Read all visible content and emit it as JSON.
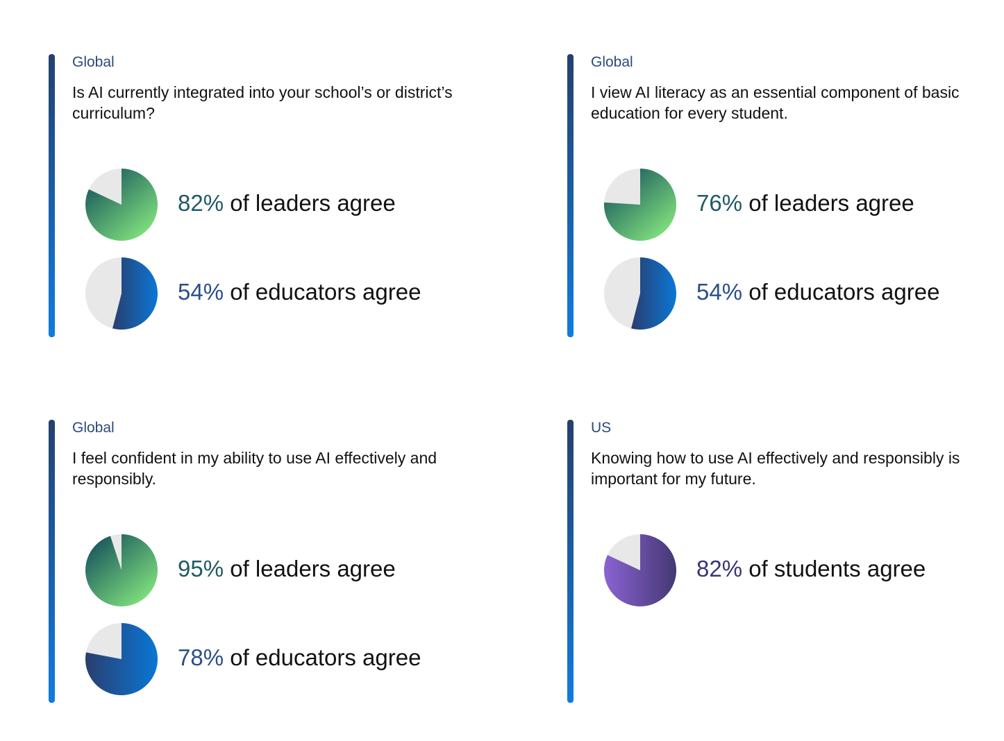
{
  "colors": {
    "pie_remainder": "#e8e8e8",
    "leaders_gradient": [
      "#1c5a5e",
      "#7fe07d"
    ],
    "educators_gradient": [
      "#293e6e",
      "#0a77d6"
    ],
    "students_gradient": [
      "#8a63d2",
      "#453873"
    ],
    "accent_bar": [
      "#25406f",
      "#0f7ce0"
    ]
  },
  "chart_data": [
    {
      "type": "pie",
      "region": "Global",
      "question": "Is AI currently integrated into your school’s or district’s curriculum?",
      "stats": [
        {
          "group": "leaders",
          "value": 82,
          "pct_label": "82%",
          "label": "of leaders agree"
        },
        {
          "group": "educators",
          "value": 54,
          "pct_label": "54%",
          "label": "of educators agree"
        }
      ]
    },
    {
      "type": "pie",
      "region": "Global",
      "question": "I view AI literacy as an essential component of basic education for every student.",
      "stats": [
        {
          "group": "leaders",
          "value": 76,
          "pct_label": "76%",
          "label": "of leaders agree"
        },
        {
          "group": "educators",
          "value": 54,
          "pct_label": "54%",
          "label": "of educators agree"
        }
      ]
    },
    {
      "type": "pie",
      "region": "Global",
      "question": "I feel confident in my ability to use AI effectively and responsibly.",
      "stats": [
        {
          "group": "leaders",
          "value": 95,
          "pct_label": "95%",
          "label": "of leaders agree"
        },
        {
          "group": "educators",
          "value": 78,
          "pct_label": "78%",
          "label": "of educators agree"
        }
      ]
    },
    {
      "type": "pie",
      "region": "US",
      "question": "Knowing how to use AI effectively and responsibly is important for my future.",
      "stats": [
        {
          "group": "students",
          "value": 82,
          "pct_label": "82%",
          "label": "of students agree"
        }
      ]
    }
  ]
}
